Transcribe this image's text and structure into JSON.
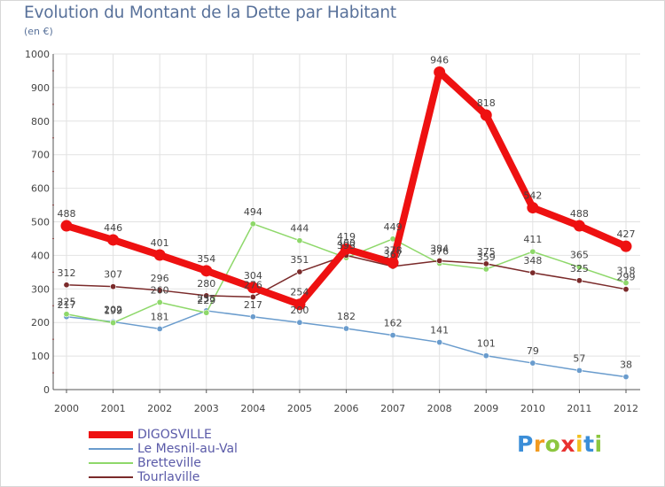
{
  "header": {
    "title": "Evolution du Montant de la Dette par Habitant",
    "subtitle": "(en €)"
  },
  "logo": {
    "text": "Proxiti"
  },
  "colors": {
    "background": "#ffffff",
    "grid": "#e2e2e2",
    "axis": "#555555",
    "tick_mark": "#d04040",
    "label": "#444444",
    "title": "#58719a",
    "legend_text": "#5a5aa8"
  },
  "chart_data": {
    "type": "line",
    "x": [
      "2000",
      "2001",
      "2002",
      "2003",
      "2004",
      "2005",
      "2006",
      "2007",
      "2008",
      "2009",
      "2010",
      "2011",
      "2012"
    ],
    "ylim": [
      0,
      1000
    ],
    "yticks": [
      0,
      100,
      200,
      300,
      400,
      500,
      600,
      700,
      800,
      900,
      1000
    ],
    "grid": true,
    "legend": "bottom-left",
    "series": [
      {
        "name": "DIGOSVILLE",
        "color": "#ee1111",
        "values": [
          488,
          446,
          401,
          354,
          304,
          254,
          419,
          378,
          946,
          818,
          542,
          488,
          427
        ]
      },
      {
        "name": "Le Mesnil-au-Val",
        "color": "#6a9ccd",
        "values": [
          217,
          202,
          181,
          235,
          217,
          200,
          182,
          162,
          141,
          101,
          79,
          57,
          38
        ]
      },
      {
        "name": "Bretteville",
        "color": "#8ed86a",
        "values": [
          225,
          199,
          260,
          229,
          494,
          444,
          393,
          449,
          376,
          359,
          411,
          365,
          318
        ]
      },
      {
        "name": "Tourlaville",
        "color": "#7a2a2a",
        "values": [
          312,
          307,
          296,
          280,
          276,
          351,
          400,
          367,
          384,
          375,
          348,
          325,
          299
        ]
      }
    ],
    "point_labels": [
      {
        "x": "2000",
        "text": "488",
        "series": 0
      },
      {
        "x": "2001",
        "text": "446",
        "series": 0
      },
      {
        "x": "2002",
        "text": "401",
        "series": 0
      },
      {
        "x": "2003",
        "text": "354",
        "series": 0
      },
      {
        "x": "2004",
        "text": "304",
        "series": 0
      },
      {
        "x": "2005",
        "text": "254",
        "series": 0
      },
      {
        "x": "2006",
        "text": "419",
        "series": 0
      },
      {
        "x": "2007",
        "text": "378",
        "series": 0
      },
      {
        "x": "2008",
        "text": "946",
        "series": 0
      },
      {
        "x": "2009",
        "text": "818",
        "series": 0
      },
      {
        "x": "2010",
        "text": "542",
        "series": 0
      },
      {
        "x": "2011",
        "text": "488",
        "series": 0
      },
      {
        "x": "2012",
        "text": "427",
        "series": 0
      },
      {
        "x": "2000",
        "text": "217",
        "series": 1
      },
      {
        "x": "2001",
        "text": "202",
        "series": 1
      },
      {
        "x": "2002",
        "text": "181",
        "series": 1
      },
      {
        "x": "2003",
        "text": "235",
        "series": 1
      },
      {
        "x": "2004",
        "text": "217",
        "series": 1
      },
      {
        "x": "2005",
        "text": "200",
        "series": 1
      },
      {
        "x": "2006",
        "text": "182",
        "series": 1
      },
      {
        "x": "2007",
        "text": "162",
        "series": 1
      },
      {
        "x": "2008",
        "text": "141",
        "series": 1
      },
      {
        "x": "2009",
        "text": "101",
        "series": 1
      },
      {
        "x": "2010",
        "text": "79",
        "series": 1
      },
      {
        "x": "2011",
        "text": "57",
        "series": 1
      },
      {
        "x": "2012",
        "text": "38",
        "series": 1
      },
      {
        "x": "2000",
        "text": "225",
        "series": 2
      },
      {
        "x": "2001",
        "text": "199",
        "series": 2
      },
      {
        "x": "2002",
        "text": "260",
        "series": 2
      },
      {
        "x": "2003",
        "text": "229",
        "series": 2
      },
      {
        "x": "2004",
        "text": "494",
        "series": 2
      },
      {
        "x": "2005",
        "text": "444",
        "series": 2
      },
      {
        "x": "2006",
        "text": "393",
        "series": 2
      },
      {
        "x": "2007",
        "text": "449",
        "series": 2
      },
      {
        "x": "2008",
        "text": "376",
        "series": 2
      },
      {
        "x": "2009",
        "text": "359",
        "series": 2
      },
      {
        "x": "2010",
        "text": "411",
        "series": 2
      },
      {
        "x": "2011",
        "text": "365",
        "series": 2
      },
      {
        "x": "2012",
        "text": "318",
        "series": 2
      },
      {
        "x": "2000",
        "text": "312",
        "series": 3
      },
      {
        "x": "2001",
        "text": "307",
        "series": 3
      },
      {
        "x": "2002",
        "text": "296",
        "series": 3
      },
      {
        "x": "2003",
        "text": "280",
        "series": 3
      },
      {
        "x": "2004",
        "text": "276",
        "series": 3
      },
      {
        "x": "2005",
        "text": "351",
        "series": 3
      },
      {
        "x": "2006",
        "text": "400",
        "series": 3
      },
      {
        "x": "2007",
        "text": "367",
        "series": 3
      },
      {
        "x": "2008",
        "text": "384",
        "series": 3
      },
      {
        "x": "2009",
        "text": "375",
        "series": 3
      },
      {
        "x": "2010",
        "text": "348",
        "series": 3
      },
      {
        "x": "2011",
        "text": "325",
        "series": 3
      },
      {
        "x": "2012",
        "text": "299",
        "series": 3
      }
    ]
  }
}
